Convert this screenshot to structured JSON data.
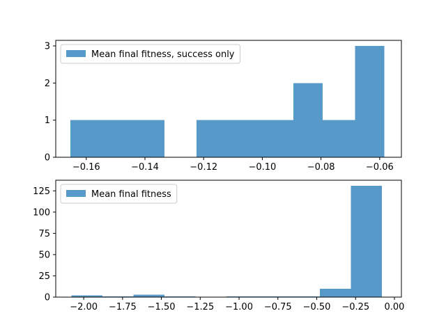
{
  "colors": {
    "bar": "#5799c8",
    "axes": "#000000",
    "background": "#ffffff"
  },
  "chart_data": [
    {
      "type": "bar",
      "histogram": true,
      "legend": "Mean final fitness, success only",
      "legend_position": "top-left",
      "grid": false,
      "xlim": [
        -0.1704,
        -0.0526
      ],
      "ylim": [
        0,
        3.15
      ],
      "xticks": [
        -0.16,
        -0.14,
        -0.12,
        -0.1,
        -0.08,
        -0.06
      ],
      "xtick_labels": [
        "−0.16",
        "−0.14",
        "−0.12",
        "−0.10",
        "−0.08",
        "−0.06"
      ],
      "yticks": [
        0,
        1,
        2,
        3
      ],
      "ytick_labels": [
        "0",
        "1",
        "2",
        "3"
      ],
      "bins": [
        [
          -0.1654,
          -0.1554,
          1
        ],
        [
          -0.1554,
          -0.1454,
          1
        ],
        [
          -0.1454,
          -0.1334,
          1
        ],
        [
          -0.1334,
          -0.1224,
          0
        ],
        [
          -0.1224,
          -0.1104,
          1
        ],
        [
          -0.1104,
          -0.0994,
          1
        ],
        [
          -0.0994,
          -0.0894,
          1
        ],
        [
          -0.0894,
          -0.0794,
          2
        ],
        [
          -0.0794,
          -0.0684,
          1
        ],
        [
          -0.0684,
          -0.0584,
          3
        ]
      ]
    },
    {
      "type": "bar",
      "histogram": true,
      "legend": "Mean final fitness",
      "legend_position": "top-left",
      "grid": false,
      "xlim": [
        -2.18,
        0.045
      ],
      "ylim": [
        0,
        137.5
      ],
      "xticks": [
        -2.0,
        -1.75,
        -1.5,
        -1.25,
        -1.0,
        -0.75,
        -0.5,
        -0.25,
        0.0
      ],
      "xtick_labels": [
        "−2.00",
        "−1.75",
        "−1.50",
        "−1.25",
        "−1.00",
        "−0.75",
        "−0.50",
        "−0.25",
        "0.00"
      ],
      "yticks": [
        0,
        25,
        50,
        75,
        100,
        125
      ],
      "ytick_labels": [
        "0",
        "25",
        "50",
        "75",
        "100",
        "125"
      ],
      "bins": [
        [
          -2.08,
          -1.88,
          2
        ],
        [
          -1.88,
          -1.68,
          1
        ],
        [
          -1.68,
          -1.48,
          3
        ],
        [
          -1.48,
          -1.28,
          1
        ],
        [
          -1.28,
          -1.08,
          0
        ],
        [
          -1.08,
          -0.88,
          1
        ],
        [
          -0.88,
          -0.68,
          1
        ],
        [
          -0.68,
          -0.48,
          1
        ],
        [
          -0.48,
          -0.28,
          10
        ],
        [
          -0.28,
          -0.08,
          131
        ]
      ]
    }
  ]
}
